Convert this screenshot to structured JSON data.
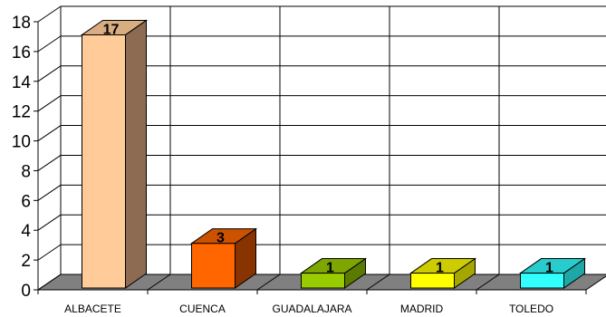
{
  "chart_data": {
    "type": "bar",
    "categories": [
      "ALBACETE",
      "CUENCA",
      "GUADALAJARA",
      "MADRID",
      "TOLEDO"
    ],
    "values": [
      17,
      3,
      1,
      1,
      1
    ],
    "y_ticks": [
      "0",
      "2",
      "4",
      "6",
      "8",
      "10",
      "12",
      "14",
      "16",
      "18"
    ],
    "ylim": [
      0,
      18
    ],
    "grid": true,
    "style": "3d-column",
    "bar_colors": [
      {
        "front": "#FFCC99",
        "side": "#8C6B52",
        "top": "#D9AD82"
      },
      {
        "front": "#FF6600",
        "side": "#883300",
        "top": "#CC5200"
      },
      {
        "front": "#99CC00",
        "side": "#5A7A00",
        "top": "#7DA600"
      },
      {
        "front": "#FFFF00",
        "side": "#A6A600",
        "top": "#CCCC00"
      },
      {
        "front": "#33FFFF",
        "side": "#1FA6A6",
        "top": "#29CCCC"
      }
    ],
    "floor_color": "#808080",
    "grid_color": "#000000"
  }
}
